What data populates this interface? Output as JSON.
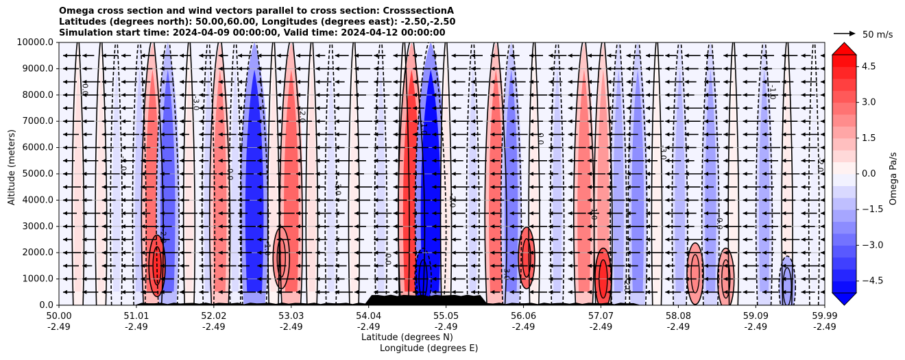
{
  "title": {
    "line1": "Omega cross section and wind vectors parallel to cross section: CrosssectionA",
    "line2": "Latitudes (degrees north): 50.00,60.00, Longitudes (degrees east): -2.50,-2.50",
    "line3": "Simulation start time: 2024-04-09 00:00:00, Valid time: 2024-04-12 00:00:00"
  },
  "chart_data": {
    "type": "heatmap",
    "description_fields": "filled omega contours with black contour lines and wind vectors",
    "ylabel": "Altitude (meters)",
    "xlabel_line1": "Latitude (degrees N)",
    "xlabel_line2": "Longitude (degrees E)",
    "ylim": [
      0,
      10000
    ],
    "yticks": [
      "0.0",
      "1000.0",
      "2000.0",
      "3000.0",
      "4000.0",
      "5000.0",
      "6000.0",
      "7000.0",
      "8000.0",
      "9000.0",
      "10000.0"
    ],
    "xlim": [
      50.0,
      59.99
    ],
    "xticks": [
      {
        "lat": "50.00",
        "lon": "-2.49",
        "value": 50.0
      },
      {
        "lat": "51.01",
        "lon": "-2.49",
        "value": 51.01
      },
      {
        "lat": "52.02",
        "lon": "-2.49",
        "value": 52.02
      },
      {
        "lat": "53.03",
        "lon": "-2.49",
        "value": 53.03
      },
      {
        "lat": "54.04",
        "lon": "-2.49",
        "value": 54.04
      },
      {
        "lat": "55.05",
        "lon": "-2.49",
        "value": 55.05
      },
      {
        "lat": "56.06",
        "lon": "-2.49",
        "value": 56.06
      },
      {
        "lat": "57.07",
        "lon": "-2.49",
        "value": 57.07
      },
      {
        "lat": "58.08",
        "lon": "-2.49",
        "value": 58.08
      },
      {
        "lat": "59.09",
        "lon": "-2.49",
        "value": 59.09
      },
      {
        "lat": "59.99",
        "lon": "-2.49",
        "value": 59.99
      }
    ],
    "grid": "horizontal",
    "colorbar": {
      "label": "Omega Pa/s",
      "min": -5.0,
      "max": 5.0,
      "ticks": [
        "4.5",
        "3.0",
        "1.5",
        "0.0",
        "−1.5",
        "−3.0",
        "−4.5"
      ],
      "colormap": "bwr"
    },
    "reference_vector": "50 m/s",
    "bands": [
      {
        "x": 50.25,
        "v": 0.6
      },
      {
        "x": 50.55,
        "v": 0.5
      },
      {
        "x": 50.75,
        "v": -0.6
      },
      {
        "x": 51.05,
        "v": -1.0
      },
      {
        "x": 51.22,
        "v": 2.8
      },
      {
        "x": 51.42,
        "v": -3.0
      },
      {
        "x": 51.7,
        "v": 0.5
      },
      {
        "x": 51.95,
        "v": -0.8
      },
      {
        "x": 52.1,
        "v": 2.5
      },
      {
        "x": 52.3,
        "v": -0.7
      },
      {
        "x": 52.55,
        "v": -4.2
      },
      {
        "x": 52.8,
        "v": 0.5
      },
      {
        "x": 53.03,
        "v": 3.0
      },
      {
        "x": 53.3,
        "v": 0.6
      },
      {
        "x": 53.55,
        "v": -0.6
      },
      {
        "x": 53.85,
        "v": 0.4
      },
      {
        "x": 54.2,
        "v": -0.7
      },
      {
        "x": 54.5,
        "v": 0.4
      },
      {
        "x": 54.6,
        "v": 3.8
      },
      {
        "x": 54.85,
        "v": -4.8
      },
      {
        "x": 55.05,
        "v": 0.4
      },
      {
        "x": 55.4,
        "v": -0.8
      },
      {
        "x": 55.7,
        "v": 2.8
      },
      {
        "x": 55.9,
        "v": -2.5
      },
      {
        "x": 56.2,
        "v": 0.4
      },
      {
        "x": 56.5,
        "v": -1.0
      },
      {
        "x": 56.85,
        "v": 2.5
      },
      {
        "x": 57.1,
        "v": 2.0
      },
      {
        "x": 57.3,
        "v": -1.6
      },
      {
        "x": 57.55,
        "v": -2.2
      },
      {
        "x": 57.8,
        "v": 0.3
      },
      {
        "x": 58.1,
        "v": -1.4
      },
      {
        "x": 58.5,
        "v": -1.8
      },
      {
        "x": 58.8,
        "v": 0.3
      },
      {
        "x": 59.2,
        "v": -1.6
      },
      {
        "x": 59.5,
        "v": 0.4
      },
      {
        "x": 59.85,
        "v": -0.3
      }
    ],
    "low_level_spots": [
      {
        "x": 51.28,
        "z": 1500,
        "v": 3.5
      },
      {
        "x": 52.9,
        "z": 1800,
        "v": 2.2
      },
      {
        "x": 54.75,
        "z": 1000,
        "v": -4.8
      },
      {
        "x": 56.1,
        "z": 1800,
        "v": 3.0
      },
      {
        "x": 57.1,
        "z": 1000,
        "v": 3.5
      },
      {
        "x": 58.3,
        "z": 1200,
        "v": 2.0
      },
      {
        "x": 58.7,
        "z": 1000,
        "v": 1.8
      },
      {
        "x": 59.5,
        "z": 700,
        "v": -1.5
      }
    ],
    "contour_labels": [
      "0.0",
      "1.0",
      "-1.0",
      "2.0",
      "-2.0",
      "3.0",
      "-3.0",
      "-0.0"
    ],
    "wind_levels": [
      9500,
      9000,
      8500,
      8000,
      7500,
      7000,
      6500,
      6000,
      5500,
      5000,
      4500,
      4000,
      3500,
      3000,
      2500,
      2000,
      1500,
      1000,
      500
    ]
  }
}
